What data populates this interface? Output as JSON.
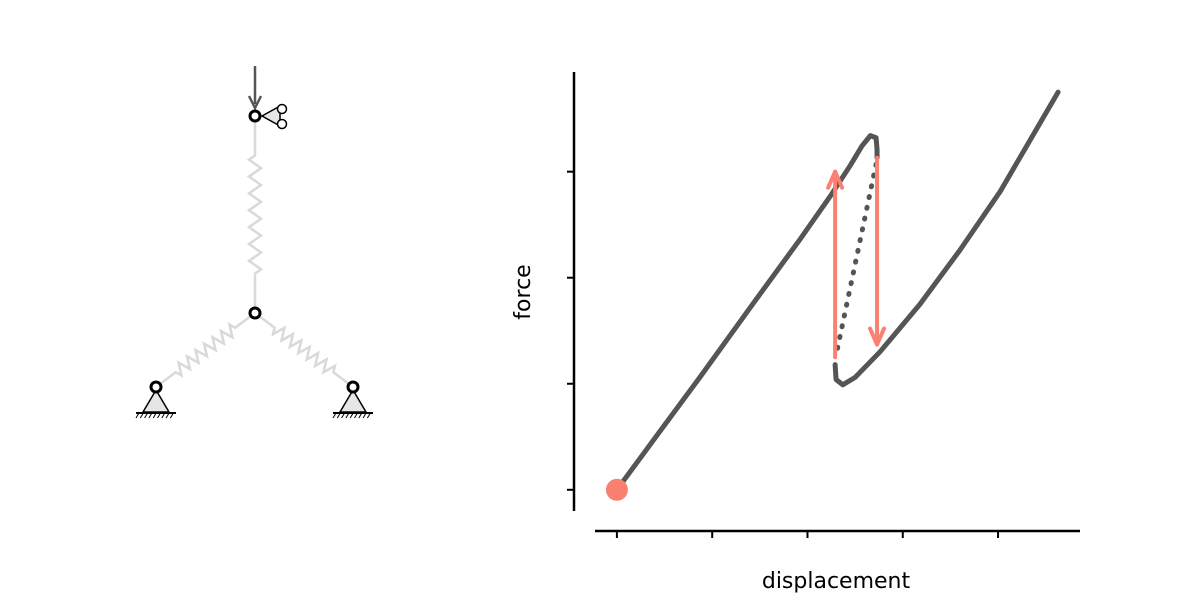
{
  "chart_data": {
    "type": "line",
    "x_label": "displacement",
    "y_label": "force",
    "xlim": [
      -0.23,
      4.86
    ],
    "ylim": [
      -0.2,
      3.94
    ],
    "xticks": [
      0,
      1,
      2,
      3,
      4
    ],
    "yticks": [
      0,
      1,
      2,
      3
    ],
    "series": [
      {
        "color": "#555555",
        "style": "solid",
        "x": [
          0,
          0.45,
          0.87,
          1.4,
          1.92,
          2.24,
          2.45,
          2.57,
          2.66,
          2.72,
          2.73,
          2.73,
          null,
          2.29,
          2.3,
          2.37,
          2.5,
          2.76,
          3.18,
          3.6,
          4.02,
          4.63
        ],
        "values": [
          0,
          0.55,
          1.06,
          1.72,
          2.36,
          2.77,
          3.06,
          3.24,
          3.34,
          3.32,
          3.21,
          3.13,
          null,
          1.18,
          1.04,
          0.99,
          1.06,
          1.3,
          1.75,
          2.26,
          2.81,
          3.75
        ]
      },
      {
        "color": "#555555",
        "style": "dotted",
        "x": [
          2.72,
          2.3
        ],
        "values": [
          3.07,
          1.27
        ]
      }
    ],
    "start_point": {
      "x": 0,
      "y": 0,
      "color": "#fa8072"
    },
    "arrows": [
      {
        "x": 2.29,
        "from": 1.25,
        "to": 3.0,
        "color": "#fa8072"
      },
      {
        "x": 2.73,
        "from": 3.13,
        "to": 1.37,
        "color": "#fa8072"
      }
    ]
  }
}
